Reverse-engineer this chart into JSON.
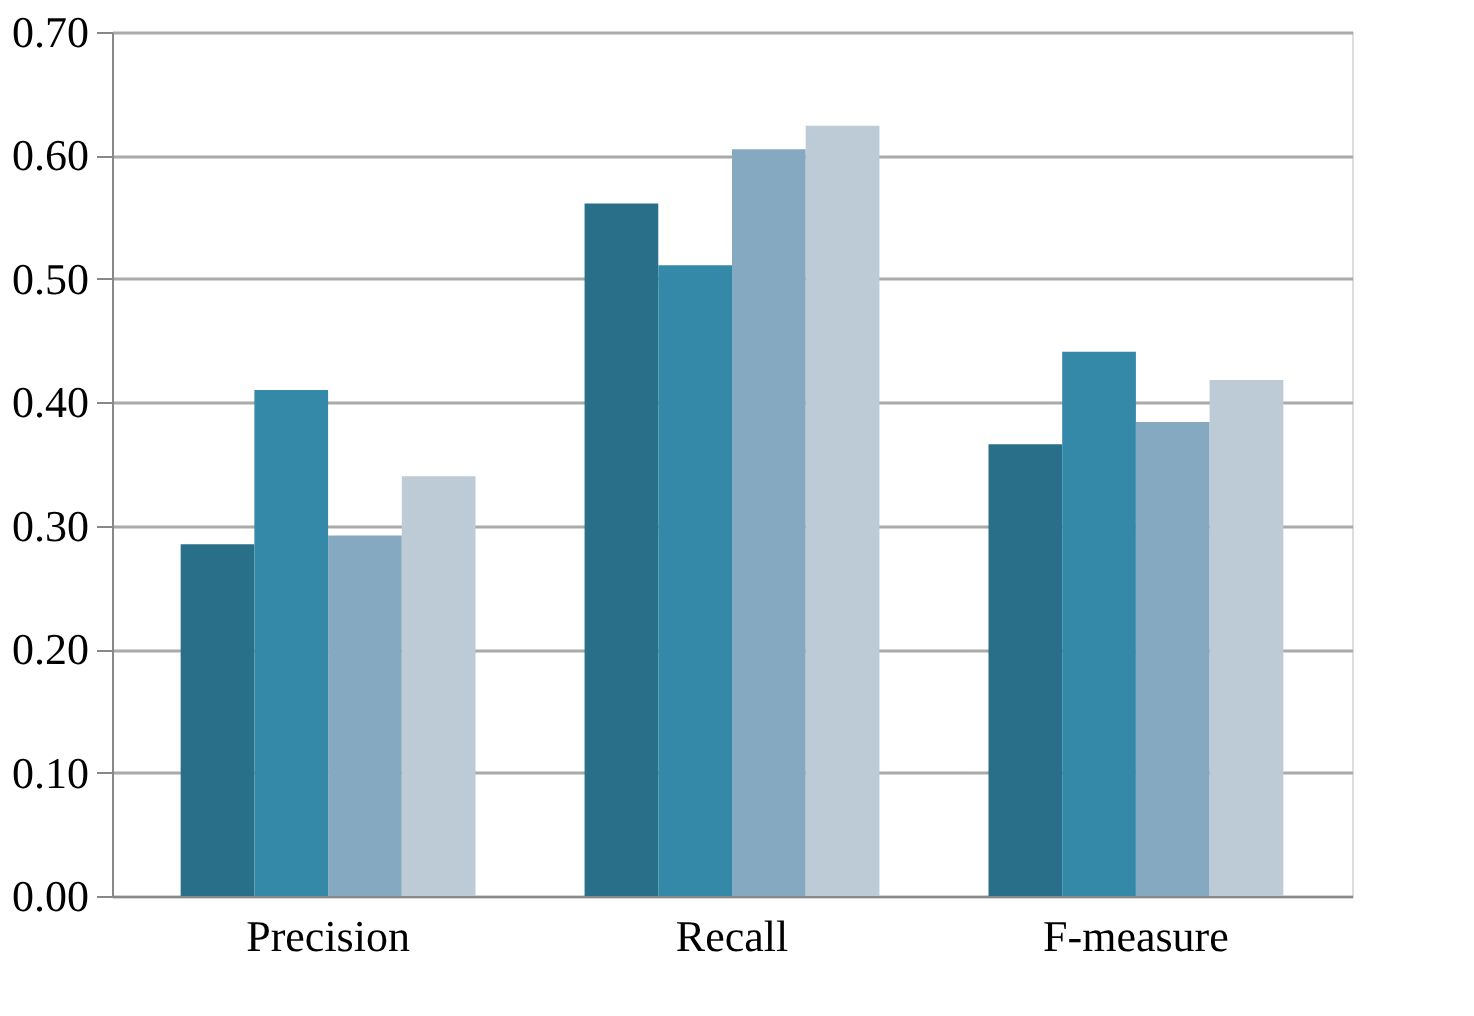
{
  "chart_data": {
    "type": "bar",
    "categories": [
      "Precision",
      "Recall",
      "F-measure"
    ],
    "series": [
      {
        "color": "#2a6f8a",
        "values": [
          0.285,
          0.561,
          0.366
        ]
      },
      {
        "color": "#3589a8",
        "values": [
          0.41,
          0.511,
          0.441
        ]
      },
      {
        "color": "#85a9c0",
        "values": [
          0.292,
          0.605,
          0.384
        ]
      },
      {
        "color": "#bccbd6",
        "values": [
          0.34,
          0.624,
          0.418
        ]
      }
    ],
    "ylim": [
      0,
      0.7
    ],
    "yticks": [
      {
        "value": 0,
        "label": "0.00"
      },
      {
        "value": 0.1,
        "label": "0.10"
      },
      {
        "value": 0.2,
        "label": "0.20"
      },
      {
        "value": 0.3,
        "label": "0.30"
      },
      {
        "value": 0.4,
        "label": "0.40"
      },
      {
        "value": 0.5,
        "label": "0.50"
      },
      {
        "value": 0.6,
        "label": "0.60"
      },
      {
        "value": 0.7,
        "label": "0.70"
      }
    ],
    "grid": "y",
    "legend": false
  }
}
